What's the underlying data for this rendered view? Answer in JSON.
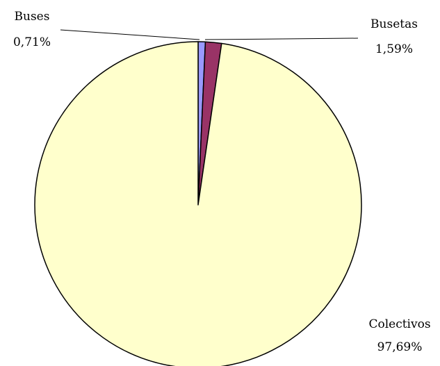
{
  "chart_data": {
    "type": "pie",
    "title": "",
    "slices": [
      {
        "label": "Buses",
        "value": 0.71,
        "value_text": "0,71%",
        "color": "#9999ff"
      },
      {
        "label": "Busetas",
        "value": 1.59,
        "value_text": "1,59%",
        "color": "#993366"
      },
      {
        "label": "Colectivos",
        "value": 97.69,
        "value_text": "97,69%",
        "color": "#ffffcc"
      }
    ],
    "start_angle": "12 o'clock",
    "direction": "clockwise",
    "legend": "none",
    "outline_color": "#000000"
  }
}
